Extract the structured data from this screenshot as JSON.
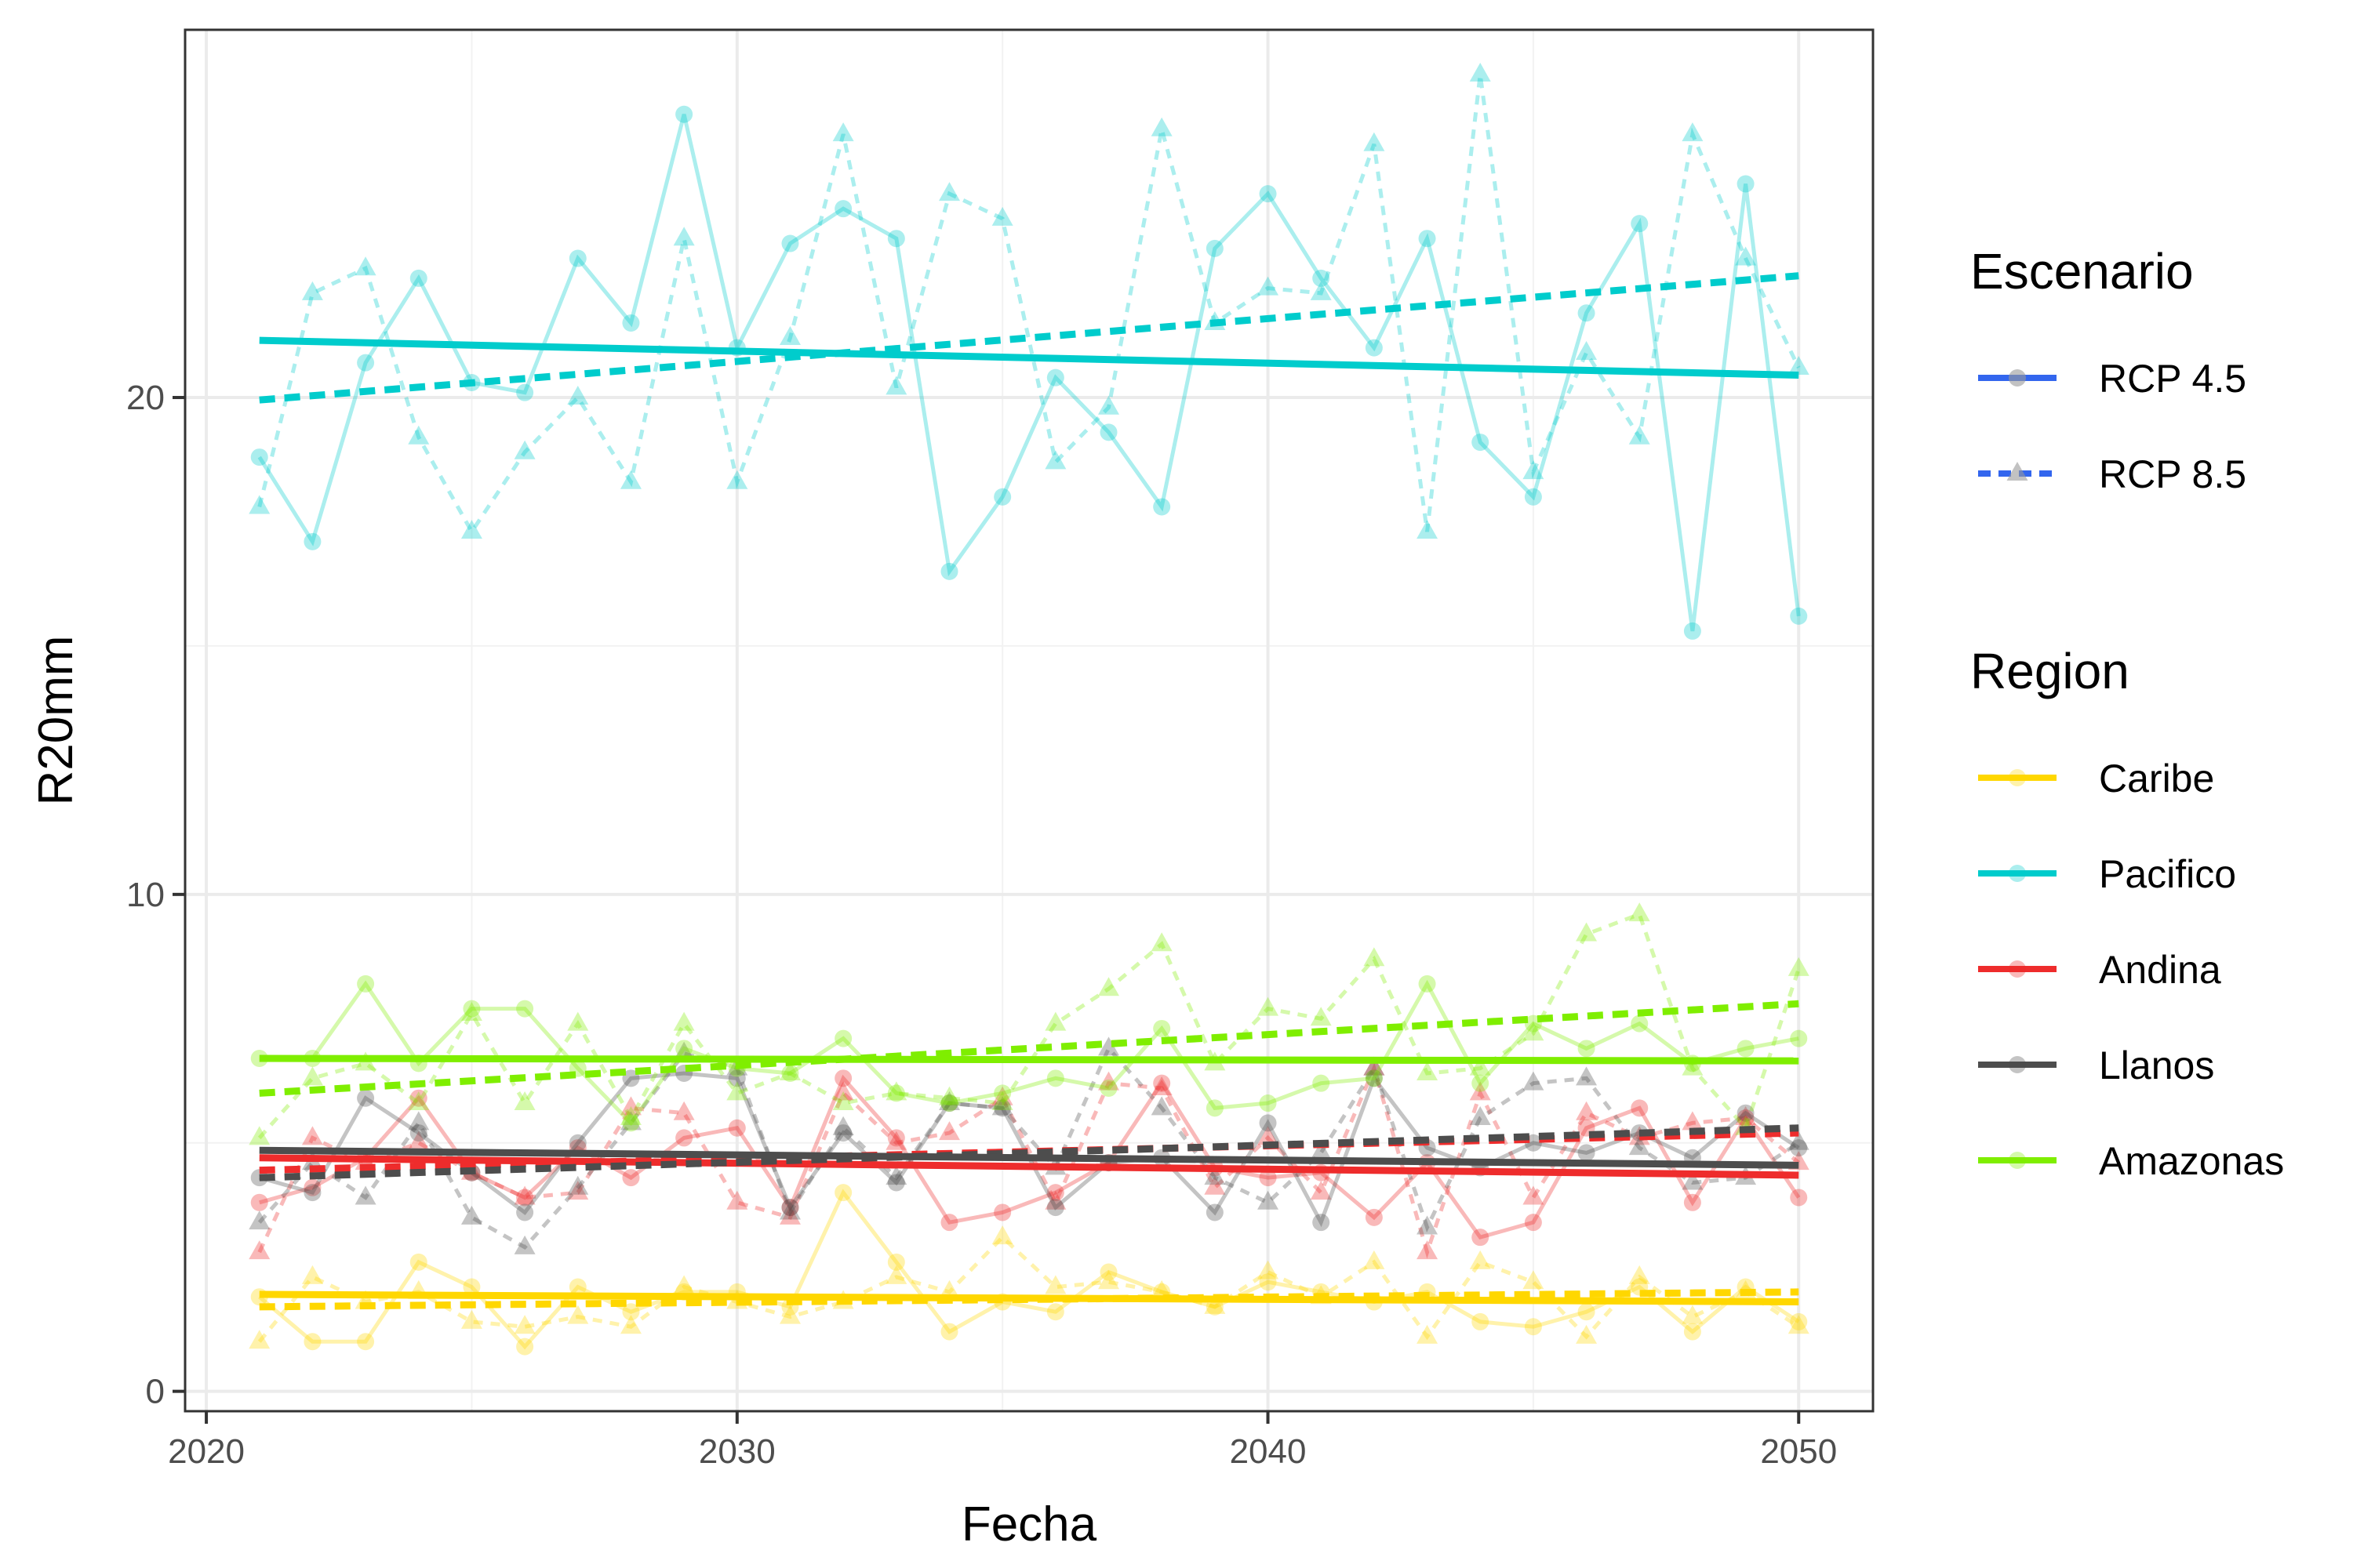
{
  "chart_data": {
    "type": "line",
    "xlabel": "Fecha",
    "ylabel": "R20mm",
    "xlim": [
      2019.6,
      2051.4
    ],
    "ylim": [
      -0.4,
      27.4
    ],
    "x_ticks": [
      2020,
      2030,
      2040,
      2050
    ],
    "y_ticks": [
      0,
      10,
      20
    ],
    "grid": true,
    "x": [
      2021,
      2022,
      2023,
      2024,
      2025,
      2026,
      2027,
      2028,
      2029,
      2030,
      2031,
      2032,
      2033,
      2034,
      2035,
      2036,
      2037,
      2038,
      2039,
      2040,
      2041,
      2042,
      2043,
      2044,
      2045,
      2046,
      2047,
      2048,
      2049,
      2050
    ],
    "legend": {
      "placement": "right",
      "scenario_title": "Escenario",
      "scenarios": [
        {
          "label": "RCP 4.5",
          "key": "rcp45",
          "line": "solid",
          "marker": "circle"
        },
        {
          "label": "RCP 8.5",
          "key": "rcp85",
          "line": "dashed",
          "marker": "triangle"
        }
      ],
      "region_title": "Region",
      "legend_key_color": "#3366ee"
    },
    "regions": [
      {
        "name": "Caribe",
        "color": "#ffd700",
        "rcp45": [
          1.9,
          1.0,
          1.0,
          2.6,
          2.1,
          0.9,
          2.1,
          1.6,
          2.0,
          2.0,
          1.7,
          4.0,
          2.6,
          1.2,
          1.8,
          1.6,
          2.4,
          2.0,
          1.7,
          2.2,
          2.0,
          1.8,
          2.0,
          1.4,
          1.3,
          1.6,
          2.1,
          1.2,
          2.1,
          1.4
        ],
        "rcp85": [
          1.0,
          2.3,
          1.8,
          2.0,
          1.4,
          1.3,
          1.5,
          1.3,
          2.1,
          1.8,
          1.5,
          1.8,
          2.3,
          2.0,
          3.1,
          2.1,
          2.2,
          2.0,
          1.7,
          2.4,
          1.9,
          2.6,
          1.1,
          2.6,
          2.2,
          1.1,
          2.3,
          1.5,
          2.0,
          1.3
        ],
        "trend45": [
          1.95,
          1.8
        ],
        "trend85": [
          1.7,
          2.0
        ]
      },
      {
        "name": "Pacifico",
        "color": "#00cccc",
        "rcp45": [
          18.8,
          17.1,
          20.7,
          22.4,
          20.3,
          20.1,
          22.8,
          21.5,
          25.7,
          21.0,
          23.1,
          23.8,
          23.2,
          16.5,
          18.0,
          20.4,
          19.3,
          17.8,
          23.0,
          24.1,
          22.4,
          21.0,
          23.2,
          19.1,
          18.0,
          21.7,
          23.5,
          15.3,
          24.3,
          15.6
        ],
        "rcp85": [
          17.8,
          22.1,
          22.6,
          19.2,
          17.3,
          18.9,
          20.0,
          18.3,
          23.2,
          18.3,
          21.2,
          25.3,
          20.2,
          24.1,
          23.6,
          18.7,
          19.8,
          25.4,
          21.5,
          22.2,
          22.1,
          25.1,
          17.3,
          26.5,
          18.5,
          20.9,
          19.2,
          25.3,
          22.8,
          20.6
        ],
        "trend45": [
          21.15,
          20.45
        ],
        "trend85": [
          19.95,
          22.45
        ]
      },
      {
        "name": "Andina",
        "color": "#ee2c2c",
        "rcp45": [
          3.8,
          4.1,
          4.7,
          5.9,
          4.4,
          3.9,
          4.9,
          4.3,
          5.1,
          5.3,
          3.7,
          6.3,
          5.1,
          3.4,
          3.6,
          4.0,
          4.6,
          6.2,
          4.5,
          4.3,
          4.4,
          3.5,
          4.6,
          3.1,
          3.4,
          5.3,
          5.7,
          3.8,
          5.5,
          3.9
        ],
        "rcp85": [
          2.8,
          5.1,
          4.6,
          5.0,
          4.4,
          3.9,
          4.0,
          5.7,
          5.6,
          3.8,
          3.5,
          6.0,
          5.0,
          5.2,
          5.9,
          3.8,
          6.2,
          6.1,
          4.1,
          5.1,
          4.0,
          6.5,
          2.8,
          6.0,
          3.9,
          5.6,
          5.1,
          5.4,
          5.5,
          4.6
        ],
        "trend45": [
          4.7,
          4.35
        ],
        "trend85": [
          4.45,
          5.2
        ]
      },
      {
        "name": "Llanos",
        "color": "#4d4d4d",
        "rcp45": [
          4.3,
          4.0,
          5.9,
          5.2,
          4.4,
          3.6,
          5.0,
          6.3,
          6.4,
          6.3,
          3.7,
          5.2,
          4.2,
          5.8,
          5.7,
          3.7,
          4.6,
          4.7,
          3.6,
          5.4,
          3.4,
          6.3,
          4.9,
          4.5,
          5.0,
          4.8,
          5.2,
          4.7,
          5.6,
          4.9
        ],
        "rcp85": [
          3.4,
          4.6,
          3.9,
          5.4,
          3.5,
          2.9,
          4.1,
          5.4,
          6.8,
          6.5,
          3.6,
          5.3,
          4.3,
          5.8,
          5.7,
          4.5,
          6.9,
          5.7,
          4.3,
          3.8,
          4.8,
          6.5,
          3.3,
          5.5,
          6.2,
          6.3,
          4.9,
          4.2,
          4.3,
          5.0
        ],
        "trend45": [
          4.85,
          4.55
        ],
        "trend85": [
          4.3,
          5.3
        ]
      },
      {
        "name": "Amazonas",
        "color": "#7fee00",
        "rcp45": [
          6.7,
          6.7,
          8.2,
          6.6,
          7.7,
          7.7,
          6.5,
          5.4,
          6.9,
          6.5,
          6.4,
          7.1,
          6.0,
          5.8,
          6.0,
          6.3,
          6.1,
          7.3,
          5.7,
          5.8,
          6.2,
          6.3,
          8.2,
          6.2,
          7.4,
          6.9,
          7.4,
          6.6,
          6.9,
          7.1
        ],
        "rcp85": [
          5.1,
          6.3,
          6.6,
          5.8,
          7.6,
          5.8,
          7.4,
          5.5,
          7.4,
          6.0,
          6.4,
          5.8,
          6.0,
          5.9,
          5.8,
          7.4,
          8.1,
          9.0,
          6.6,
          7.7,
          7.5,
          8.7,
          6.4,
          6.5,
          7.2,
          9.2,
          9.6,
          6.5,
          5.3,
          8.5
        ],
        "trend45": [
          6.7,
          6.65
        ],
        "trend85": [
          6.0,
          7.8
        ]
      }
    ]
  }
}
